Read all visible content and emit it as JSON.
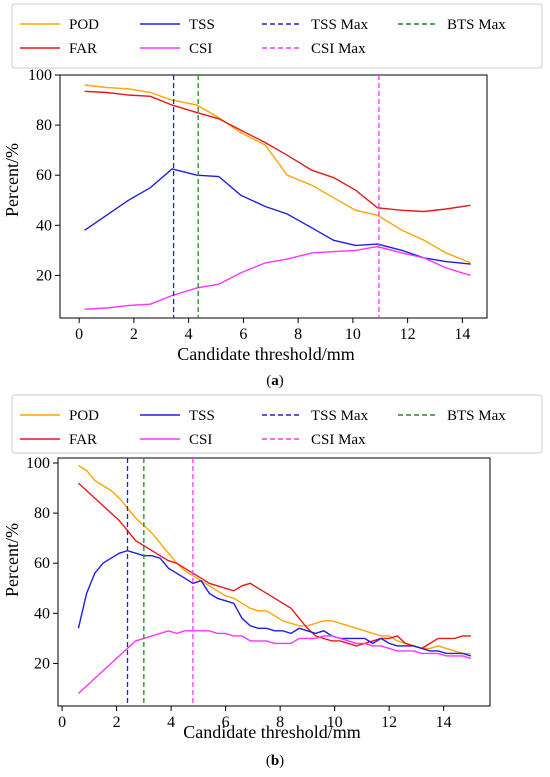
{
  "chart_data": [
    {
      "type": "line",
      "panel": "a",
      "caption": "(a)",
      "caption_letter": "a",
      "xlabel": "Candidate threshold/mm",
      "ylabel": "Percent/%",
      "xlim": [
        -0.7,
        14.9
      ],
      "ylim": [
        3,
        100
      ],
      "xticks": [
        0,
        2,
        4,
        6,
        8,
        10,
        12,
        14
      ],
      "yticks": [
        20,
        40,
        60,
        80,
        100
      ],
      "grid": false,
      "legend_position": "top",
      "series": [
        {
          "name": "POD",
          "color": "#FFA500",
          "style": "solid",
          "x": [
            0.2,
            1.0,
            1.8,
            2.6,
            3.4,
            4.3,
            5.1,
            5.9,
            6.8,
            7.6,
            8.5,
            9.3,
            10.1,
            10.9,
            11.8,
            12.6,
            13.4,
            14.3
          ],
          "y": [
            96,
            95,
            94.5,
            93,
            90,
            88,
            83,
            77,
            72,
            60,
            56,
            51,
            46,
            44,
            38,
            34,
            29,
            25
          ]
        },
        {
          "name": "FAR",
          "color": "#E41A1C",
          "style": "solid",
          "x": [
            0.2,
            1.0,
            1.8,
            2.6,
            3.4,
            4.3,
            5.1,
            5.9,
            6.8,
            7.6,
            8.5,
            9.3,
            10.1,
            10.9,
            11.8,
            12.6,
            13.4,
            14.3
          ],
          "y": [
            93.5,
            93,
            92,
            91.5,
            88,
            85,
            82.5,
            78,
            73,
            68,
            62,
            59,
            54,
            47,
            46,
            45.5,
            46.5,
            48
          ]
        },
        {
          "name": "TSS",
          "color": "#1F1FE0",
          "style": "solid",
          "x": [
            0.2,
            1.0,
            1.8,
            2.6,
            3.4,
            4.3,
            5.1,
            5.9,
            6.8,
            7.6,
            8.5,
            9.3,
            10.1,
            10.9,
            11.8,
            12.6,
            13.4,
            14.3
          ],
          "y": [
            38,
            44,
            50,
            55,
            62.5,
            60,
            59.5,
            52,
            47.5,
            44.5,
            39,
            34,
            32,
            32.5,
            30,
            27,
            25.5,
            24.5
          ]
        },
        {
          "name": "CSI",
          "color": "#FF33FF",
          "style": "solid",
          "x": [
            0.2,
            1.0,
            1.8,
            2.6,
            3.4,
            4.3,
            5.1,
            5.9,
            6.8,
            7.6,
            8.5,
            9.3,
            10.1,
            10.9,
            11.8,
            12.6,
            13.4,
            14.3
          ],
          "y": [
            6.5,
            7,
            8,
            8.5,
            12,
            15,
            16.5,
            21,
            25,
            26.5,
            29,
            29.5,
            30,
            31.5,
            29,
            27,
            23,
            20
          ]
        }
      ],
      "vlines": [
        {
          "name": "TSS Max",
          "x": 3.45,
          "color": "#1F1FE0"
        },
        {
          "name": "CSI Max",
          "x": 10.95,
          "color": "#FF33FF"
        },
        {
          "name": "BTS Max",
          "x": 4.35,
          "color": "#1E8C1E"
        }
      ]
    },
    {
      "type": "line",
      "panel": "b",
      "caption": "(b)",
      "caption_letter": "b",
      "xlabel": "Candidate threshold/mm",
      "ylabel": "Percent/%",
      "xlim": [
        -0.15,
        15.7
      ],
      "ylim": [
        3,
        102
      ],
      "xticks": [
        0,
        2,
        4,
        6,
        8,
        10,
        12,
        14
      ],
      "yticks": [
        20,
        40,
        60,
        80,
        100
      ],
      "grid": false,
      "legend_position": "top",
      "series": [
        {
          "name": "POD",
          "color": "#FFA500",
          "style": "solid",
          "x": [
            0.6,
            0.9,
            1.2,
            1.5,
            1.8,
            2.1,
            2.4,
            2.7,
            3.0,
            3.3,
            3.6,
            3.9,
            4.2,
            4.5,
            4.8,
            5.1,
            5.4,
            5.7,
            6.0,
            6.3,
            6.6,
            6.9,
            7.2,
            7.5,
            7.8,
            8.1,
            8.4,
            8.7,
            9.0,
            9.3,
            9.6,
            9.9,
            10.2,
            10.5,
            10.8,
            11.1,
            11.4,
            11.7,
            12.0,
            12.3,
            12.6,
            12.9,
            13.2,
            13.5,
            13.8,
            14.1,
            14.4,
            14.7,
            15.0
          ],
          "y": [
            99,
            97,
            93,
            91,
            89,
            86,
            82,
            78,
            75,
            72,
            68,
            64,
            60,
            57,
            55,
            53,
            51,
            49,
            47,
            46,
            44,
            42,
            41,
            41,
            39,
            37,
            36,
            35,
            35,
            36,
            37,
            37,
            36,
            35,
            34,
            33,
            32,
            31,
            31,
            29,
            28,
            27,
            26,
            26,
            27,
            26,
            25,
            24,
            24
          ]
        },
        {
          "name": "FAR",
          "color": "#E41A1C",
          "style": "solid",
          "x": [
            0.6,
            0.9,
            1.2,
            1.5,
            1.8,
            2.1,
            2.4,
            2.7,
            3.0,
            3.3,
            3.6,
            3.9,
            4.2,
            4.5,
            4.8,
            5.1,
            5.4,
            5.7,
            6.0,
            6.3,
            6.6,
            6.9,
            7.2,
            7.5,
            7.8,
            8.1,
            8.4,
            8.7,
            9.0,
            9.3,
            9.6,
            9.9,
            10.2,
            10.5,
            10.8,
            11.1,
            11.4,
            11.7,
            12.0,
            12.3,
            12.6,
            12.9,
            13.2,
            13.5,
            13.8,
            14.1,
            14.4,
            14.7,
            15.0
          ],
          "y": [
            92,
            89,
            86,
            83,
            80,
            77,
            73,
            69,
            67,
            65,
            63,
            61,
            60,
            58,
            56,
            54,
            52,
            51,
            50,
            49,
            51,
            52,
            50,
            48,
            46,
            44,
            42,
            38,
            34,
            31,
            30,
            29,
            29,
            28,
            27,
            28,
            29,
            30,
            30,
            31,
            28,
            27,
            26,
            28,
            30,
            30,
            30,
            31,
            31
          ]
        },
        {
          "name": "TSS",
          "color": "#1F1FE0",
          "style": "solid",
          "x": [
            0.6,
            0.9,
            1.2,
            1.5,
            1.8,
            2.1,
            2.4,
            2.7,
            3.0,
            3.3,
            3.6,
            3.9,
            4.2,
            4.5,
            4.8,
            5.1,
            5.4,
            5.7,
            6.0,
            6.3,
            6.6,
            6.9,
            7.2,
            7.5,
            7.8,
            8.1,
            8.4,
            8.7,
            9.0,
            9.3,
            9.6,
            9.9,
            10.2,
            10.5,
            10.8,
            11.1,
            11.4,
            11.7,
            12.0,
            12.3,
            12.6,
            12.9,
            13.2,
            13.5,
            13.8,
            14.1,
            14.4,
            14.7,
            15.0
          ],
          "y": [
            34,
            48,
            56,
            60,
            62,
            64,
            65,
            64,
            63,
            63,
            62,
            58,
            56,
            54,
            52,
            53,
            48,
            46,
            45,
            44,
            38,
            35,
            34,
            34,
            33,
            33,
            32,
            34,
            33,
            32,
            33,
            31,
            30,
            30,
            30,
            30,
            28,
            30,
            28,
            27,
            27,
            27,
            26,
            25,
            25,
            24,
            24,
            24,
            23
          ]
        },
        {
          "name": "CSI",
          "color": "#FF33FF",
          "style": "solid",
          "x": [
            0.6,
            0.9,
            1.2,
            1.5,
            1.8,
            2.1,
            2.4,
            2.7,
            3.0,
            3.3,
            3.6,
            3.9,
            4.2,
            4.5,
            4.8,
            5.1,
            5.4,
            5.7,
            6.0,
            6.3,
            6.6,
            6.9,
            7.2,
            7.5,
            7.8,
            8.1,
            8.4,
            8.7,
            9.0,
            9.3,
            9.6,
            9.9,
            10.2,
            10.5,
            10.8,
            11.1,
            11.4,
            11.7,
            12.0,
            12.3,
            12.6,
            12.9,
            13.2,
            13.5,
            13.8,
            14.1,
            14.4,
            14.7,
            15.0
          ],
          "y": [
            8,
            11,
            14,
            17,
            20,
            23,
            26,
            29,
            30,
            31,
            32,
            33,
            32,
            33,
            33,
            33,
            33,
            32,
            32,
            31,
            31,
            29,
            29,
            29,
            28,
            28,
            28,
            30,
            30,
            30,
            31,
            31,
            30,
            29,
            28,
            28,
            27,
            27,
            26,
            25,
            25,
            25,
            24,
            24,
            24,
            23,
            23,
            23,
            22
          ]
        }
      ],
      "vlines": [
        {
          "name": "TSS Max",
          "x": 2.4,
          "color": "#1F1FE0"
        },
        {
          "name": "CSI Max",
          "x": 4.8,
          "color": "#FF33FF"
        },
        {
          "name": "BTS Max",
          "x": 3.0,
          "color": "#1E8C1E"
        }
      ]
    }
  ]
}
